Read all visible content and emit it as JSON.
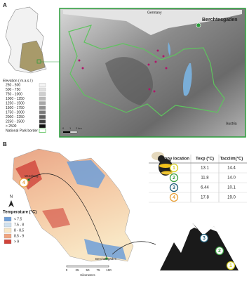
{
  "panel_a": {
    "label": "A",
    "places": {
      "germany": "Germany",
      "berchtesgaden": "Berchtesgaden",
      "austria": "Austria"
    },
    "legend": {
      "title": "Elevation ( m.a.s.l )",
      "items": [
        "250 - 500",
        "500 - 750",
        "750 - 1000",
        "1000 - 1250",
        "1250 - 1500",
        "1500 - 1750",
        "1750 - 2000",
        "2000 - 2250",
        "2250 - 2500",
        "> 2500"
      ],
      "border": "National Park border"
    },
    "scale": [
      "0",
      "1",
      "2 km"
    ]
  },
  "panel_b": {
    "label": "B",
    "north": "N",
    "legend": {
      "title": "Temperature (°C)",
      "items": [
        "< 7.5",
        "7.5 - 8",
        "8 - 8.5",
        "8.5 - 9",
        "> 9"
      ]
    },
    "scale": [
      "0",
      "25",
      "50",
      "75",
      "100"
    ],
    "scale_unit": "Kilometers",
    "cities": [
      "Würzburg",
      "Berchtesgaden"
    ],
    "table": {
      "header": [
        "colony location",
        "Texp (°C)",
        "Tacclim(°C)"
      ],
      "rows": [
        [
          "1",
          "13.1",
          "14.4"
        ],
        [
          "2",
          "11.8",
          "14.0"
        ],
        [
          "3",
          "6.44",
          "10.1"
        ],
        [
          "4",
          "17.8",
          "19.0"
        ]
      ]
    }
  }
}
